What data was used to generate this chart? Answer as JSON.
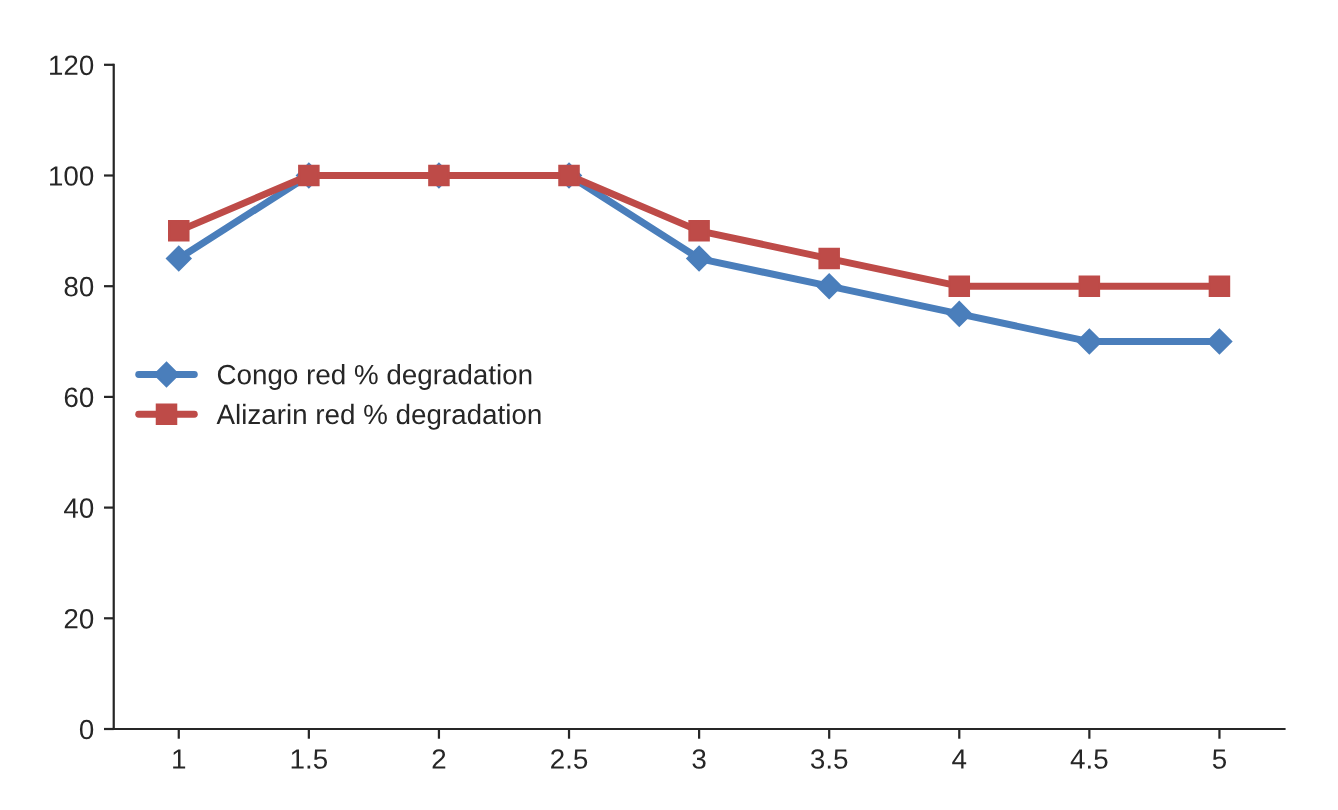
{
  "chart_data": {
    "type": "line",
    "categories": [
      "1",
      "1.5",
      "2",
      "2.5",
      "3",
      "3.5",
      "4",
      "4.5",
      "5"
    ],
    "series": [
      {
        "name": "Congo red % degradation",
        "color": "#4a7ebb",
        "marker": "diamond",
        "values": [
          85,
          100,
          100,
          100,
          85,
          80,
          75,
          70,
          70
        ]
      },
      {
        "name": "Alizarin red % degradation",
        "color": "#be4b48",
        "marker": "square",
        "values": [
          90,
          100,
          100,
          100,
          90,
          85,
          80,
          80,
          80
        ]
      }
    ],
    "ylim": [
      0,
      120
    ],
    "yticks": [
      0,
      20,
      40,
      60,
      80,
      100,
      120
    ],
    "grid": false,
    "legend": "left",
    "line_style": "solid"
  }
}
